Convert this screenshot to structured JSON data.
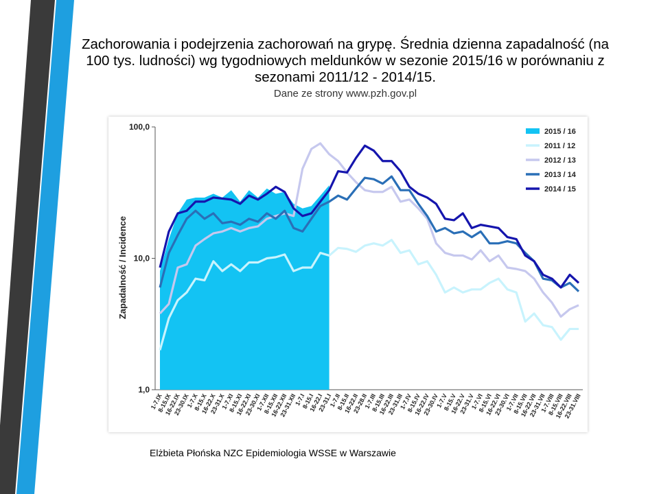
{
  "title": "Zachorowania i podejrzenia zachorowań na grypę. Średnia dzienna zapadalność (na 100 tys. ludności) wg tygodniowych meldunków w sezonie 2015/16 w porównaniu z sezonami 2011/12 - 2014/15.",
  "subtitle": "Dane ze strony www.pzh.gov.pl",
  "footer": "Elżbieta Płońska NZC Epidemiologia WSSE w Warszawie",
  "chart_data": {
    "type": "line",
    "y_label": "Zapadalność  / Incidence",
    "log_scale": true,
    "ylim": [
      1,
      100
    ],
    "yticks": [
      {
        "value": 100,
        "label": "100,0"
      },
      {
        "value": 10,
        "label": "10,0"
      },
      {
        "value": 1,
        "label": "1,0"
      }
    ],
    "legend": "top-right",
    "categories": [
      "1-7.IX",
      "8-15.IX",
      "16-22.IX",
      "23-30.IX",
      "1-7.X",
      "8-15.X",
      "16-22.X",
      "23-31.X",
      "1-7.XI",
      "8-15.XI",
      "16-22.XI",
      "23-30.XI",
      "1-7.XII",
      "8-15.XII",
      "16-22.XII",
      "23-31.XII",
      "1-7.I",
      "8-15.I",
      "16-22.I",
      "23-31.I",
      "1-7.II",
      "8-15.II",
      "16-22.II",
      "23-28.II",
      "1-7.III",
      "8-15.III",
      "16-22.III",
      "23-31.III",
      "1-7.IV",
      "8-15.IV",
      "16-22.IV",
      "23-30.IV",
      "1-7.V",
      "8-15.V",
      "16-22.V",
      "23-31.V",
      "1-7.VI",
      "8-15.VI",
      "16-22.VI",
      "23-30.VI",
      "1-7.VII",
      "8-15.VII",
      "16-22.VII",
      "23-31.VII",
      "1-7.VIII",
      "8-15.VIII",
      "16-22.VIII",
      "23-31.VIII"
    ],
    "series": [
      {
        "name": "2015 / 16",
        "color": "#13c3f3",
        "area": true,
        "values": [
          8,
          14,
          22,
          28,
          29,
          29,
          31,
          29,
          33,
          27,
          33,
          29,
          34,
          31,
          32,
          26,
          24,
          25,
          30,
          36,
          null,
          null,
          null,
          null,
          null,
          null,
          null,
          null,
          null,
          null,
          null,
          null,
          null,
          null,
          null,
          null,
          null,
          null,
          null,
          null,
          null,
          null,
          null,
          null,
          null,
          null,
          null,
          null
        ]
      },
      {
        "name": "2011 / 12",
        "color": "#c8f3fd",
        "values": [
          2,
          3.5,
          4.8,
          5.5,
          7,
          6.8,
          9.5,
          8,
          9,
          8,
          9.3,
          9.3,
          10,
          10.2,
          10.7,
          8,
          8.5,
          8.5,
          11,
          10.5,
          12,
          11.8,
          11.2,
          12.5,
          13,
          12.5,
          13.8,
          11,
          11.5,
          9,
          9.5,
          7.5,
          5.5,
          6,
          5.5,
          5.8,
          5.8,
          6.5,
          7,
          5.8,
          5.5,
          3.3,
          3.8,
          3.1,
          3,
          2.4,
          2.9,
          2.9
        ]
      },
      {
        "name": "2012 / 13",
        "color": "#c6c8ee",
        "values": [
          3.8,
          4.5,
          8.5,
          9,
          12.5,
          14,
          15.5,
          16,
          17,
          16,
          17,
          17.5,
          20,
          21,
          22,
          21,
          48,
          68,
          75,
          62,
          55,
          45,
          38,
          33,
          32,
          32,
          35,
          27,
          28,
          24,
          20,
          13,
          11,
          10.5,
          10.5,
          9.8,
          11.5,
          9.5,
          10.5,
          8.5,
          8.3,
          8,
          7,
          5.5,
          4.6,
          3.6,
          4.1,
          4.4
        ]
      },
      {
        "name": "2013 / 14",
        "color": "#2a6fb7",
        "values": [
          6,
          11,
          15,
          20,
          23,
          20,
          22,
          18.5,
          19,
          18,
          20,
          19,
          22,
          20,
          23,
          17,
          16,
          20,
          25,
          27,
          30,
          28,
          34,
          41,
          40,
          37,
          42,
          33,
          33,
          26,
          21,
          16,
          17,
          15.5,
          16,
          14.5,
          16,
          13,
          13,
          13.5,
          13,
          11,
          9.5,
          7,
          6.8,
          6,
          6.5,
          5.6
        ]
      },
      {
        "name": "2014 / 15",
        "color": "#1515ad",
        "values": [
          8.5,
          16,
          22,
          23,
          27,
          27,
          29,
          28.5,
          28,
          26,
          30,
          28,
          31,
          35,
          32,
          24,
          21,
          22,
          27,
          33,
          46,
          45,
          58,
          72,
          66,
          55,
          55,
          46,
          35,
          31,
          29,
          26,
          20,
          19.5,
          22,
          17,
          18,
          17.5,
          17,
          14.5,
          14,
          10.5,
          9.5,
          7.5,
          7,
          6,
          7.5,
          6.5
        ]
      }
    ]
  }
}
